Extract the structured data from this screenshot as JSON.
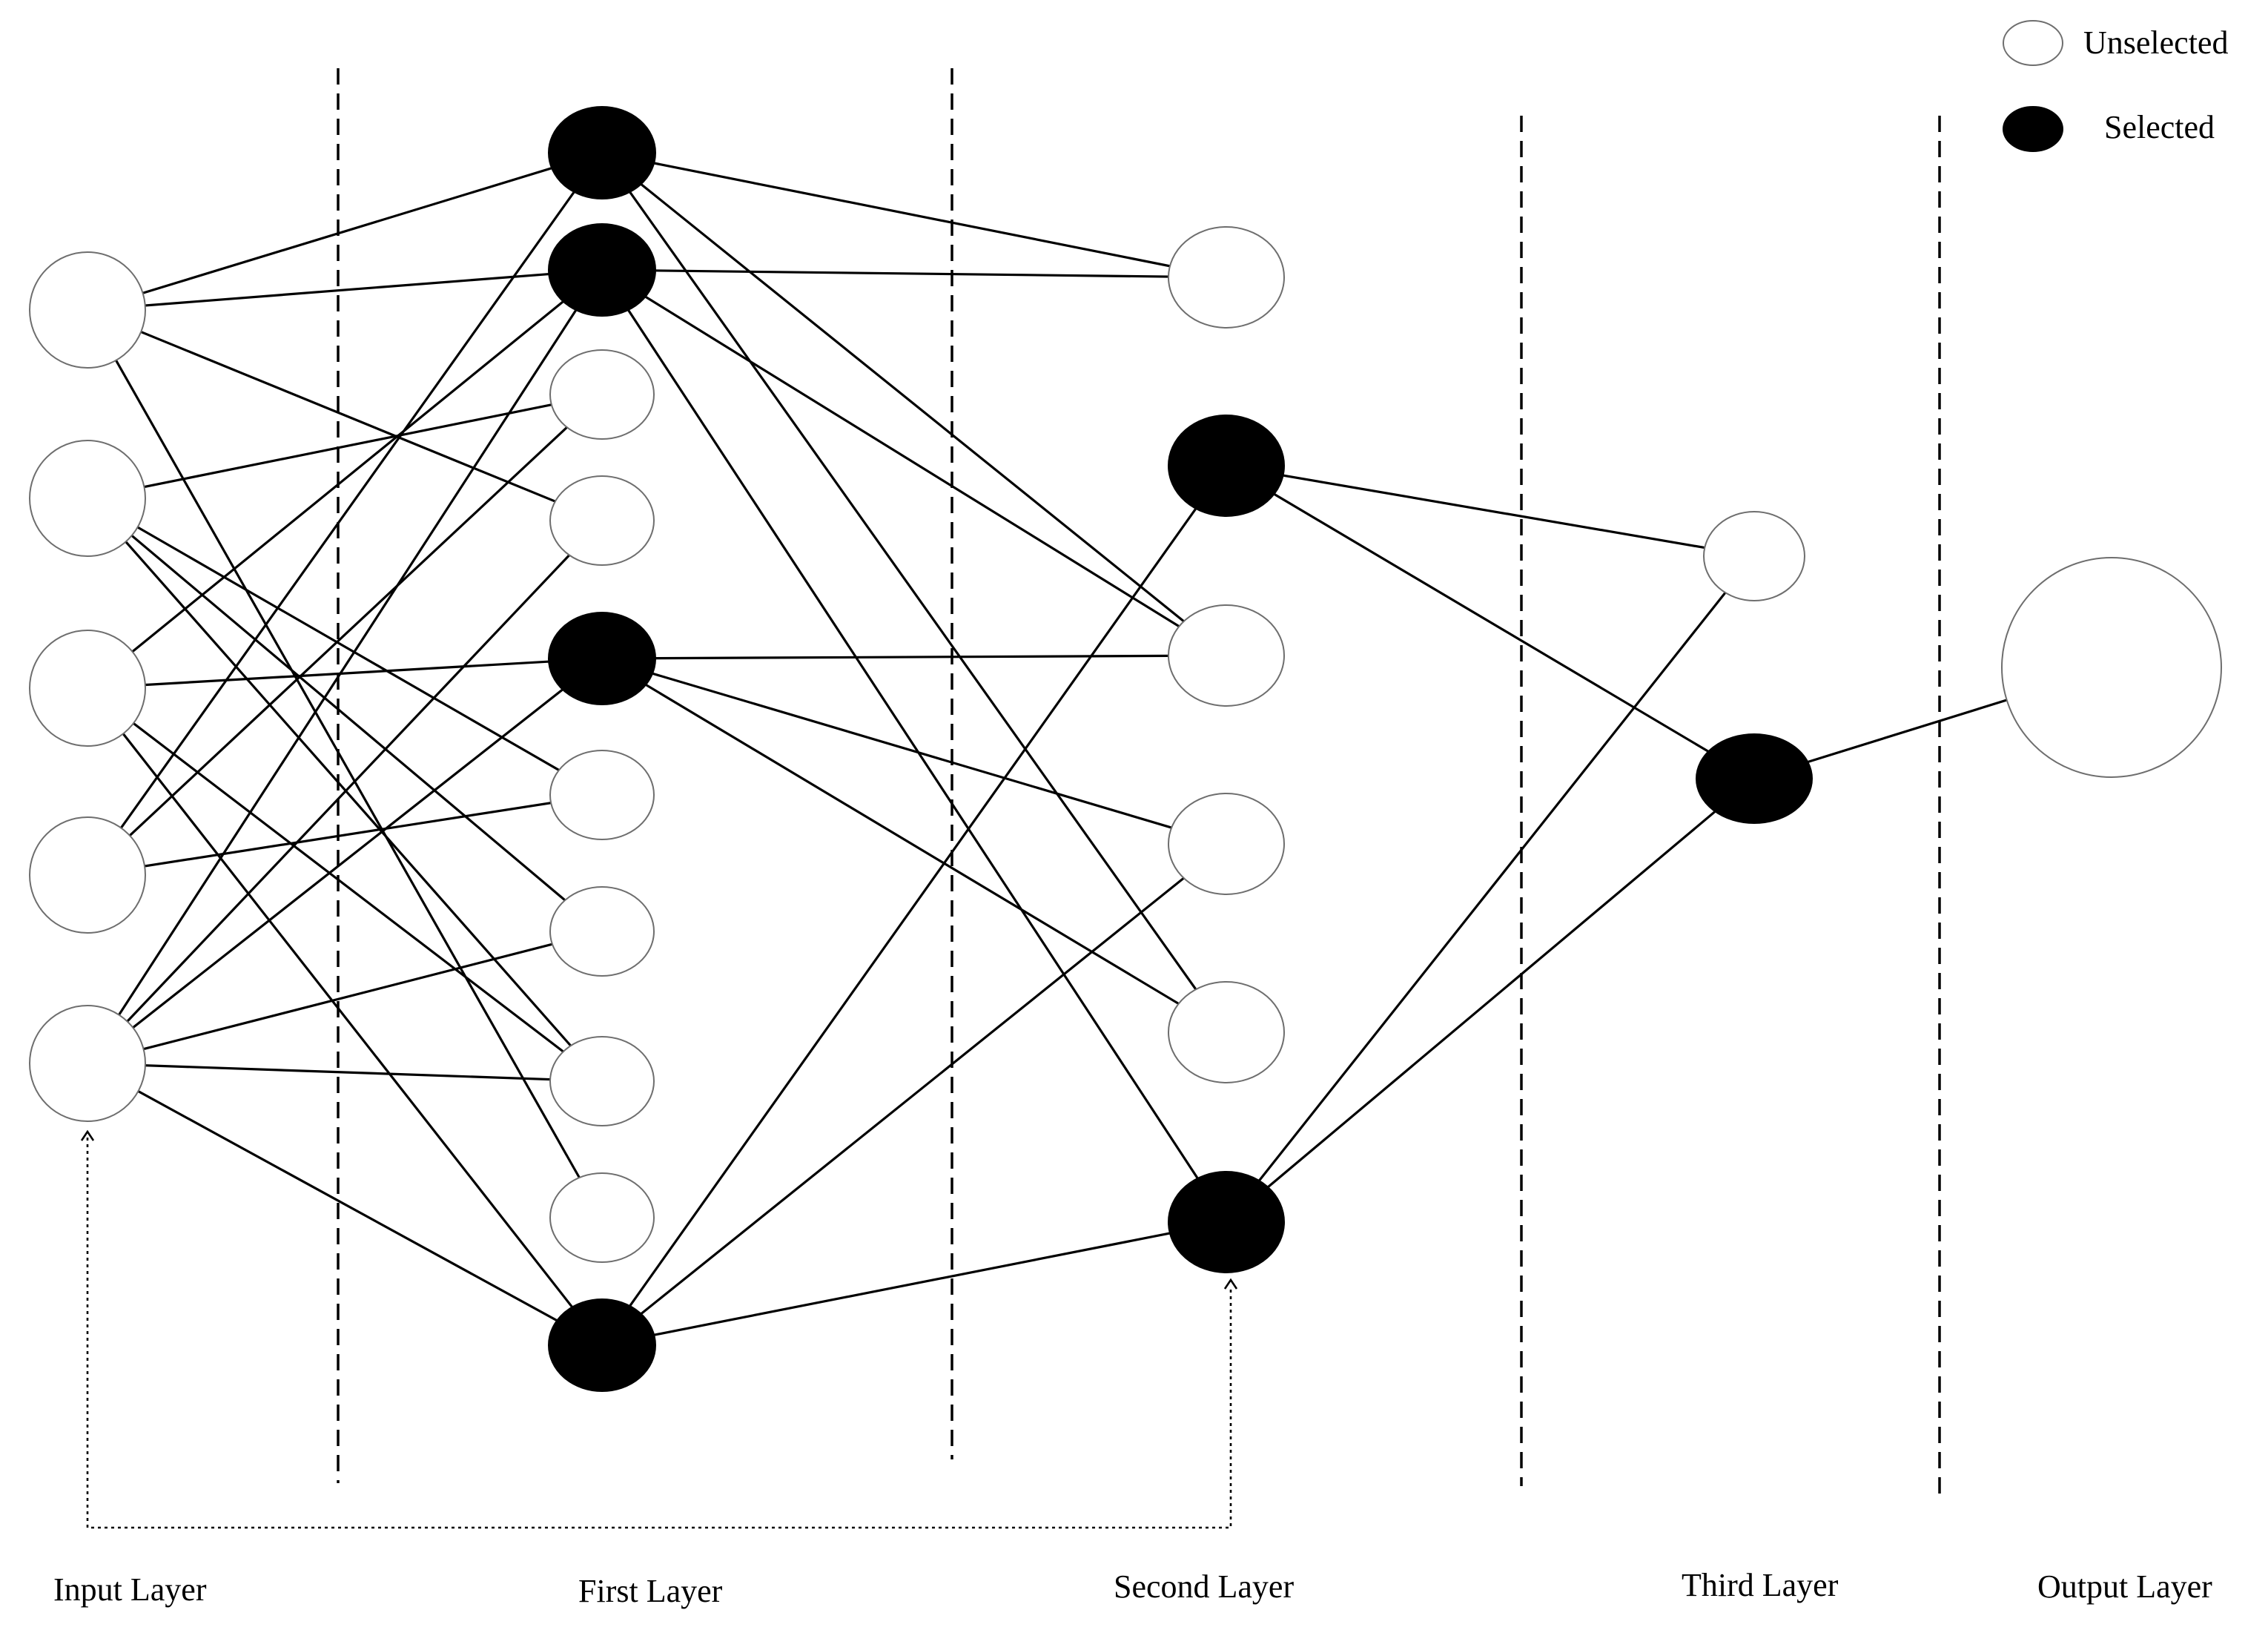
{
  "legend": {
    "unselected_label": "Unselected",
    "selected_label": "Selected"
  },
  "layers": [
    {
      "id": "input",
      "label": "Input Layer"
    },
    {
      "id": "first",
      "label": "First Layer"
    },
    {
      "id": "second",
      "label": "Second Layer"
    },
    {
      "id": "third",
      "label": "Third Layer"
    },
    {
      "id": "output",
      "label": "Output Layer"
    }
  ],
  "nodes": {
    "input": [
      false,
      false,
      false,
      false,
      false
    ],
    "first": [
      true,
      true,
      false,
      false,
      true,
      false,
      false,
      false,
      false,
      true
    ],
    "second": [
      false,
      true,
      false,
      false,
      false,
      true
    ],
    "third": [
      false,
      true
    ],
    "output": [
      false
    ]
  },
  "edges": {
    "input_first": [
      [
        0,
        0
      ],
      [
        0,
        1
      ],
      [
        0,
        3
      ],
      [
        0,
        8
      ],
      [
        1,
        2
      ],
      [
        1,
        5
      ],
      [
        1,
        6
      ],
      [
        1,
        7
      ],
      [
        2,
        1
      ],
      [
        2,
        4
      ],
      [
        2,
        7
      ],
      [
        2,
        9
      ],
      [
        3,
        0
      ],
      [
        3,
        2
      ],
      [
        3,
        5
      ],
      [
        4,
        1
      ],
      [
        4,
        3
      ],
      [
        4,
        4
      ],
      [
        4,
        6
      ],
      [
        4,
        7
      ],
      [
        4,
        9
      ]
    ],
    "first_second": [
      [
        0,
        0
      ],
      [
        0,
        2
      ],
      [
        0,
        4
      ],
      [
        1,
        0
      ],
      [
        1,
        2
      ],
      [
        1,
        5
      ],
      [
        4,
        2
      ],
      [
        4,
        3
      ],
      [
        4,
        4
      ],
      [
        9,
        1
      ],
      [
        9,
        3
      ],
      [
        9,
        5
      ]
    ],
    "second_third": [
      [
        1,
        0
      ],
      [
        1,
        1
      ],
      [
        5,
        0
      ],
      [
        5,
        1
      ]
    ],
    "third_output": [
      [
        1,
        0
      ]
    ]
  },
  "skip_connection": {
    "from": "input.4",
    "to": "second.5"
  }
}
